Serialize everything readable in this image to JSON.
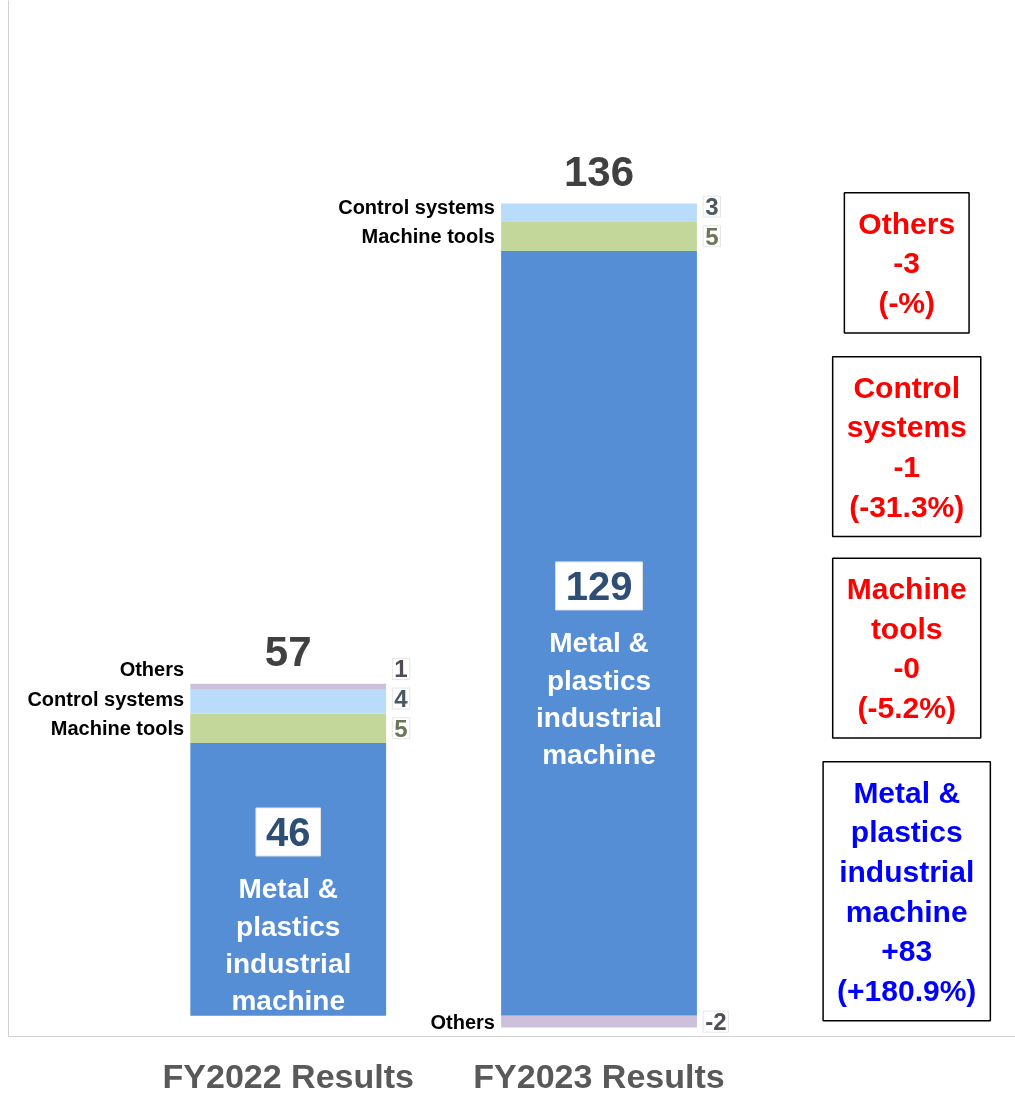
{
  "chart_data": {
    "type": "bar",
    "stacked": true,
    "categories": [
      "FY2022 Results",
      "FY2023 Results"
    ],
    "series": [
      {
        "name": "Metal & plastics industrial machine",
        "color": "#558ed5",
        "values": [
          46,
          129
        ]
      },
      {
        "name": "Machine tools",
        "color": "#c4d79b",
        "values": [
          5,
          5
        ]
      },
      {
        "name": "Control systems",
        "color": "#b9dcfb",
        "values": [
          4,
          3
        ]
      },
      {
        "name": "Others",
        "color": "#ccc0da",
        "values": [
          1,
          -2
        ]
      }
    ],
    "tick_labels": "x",
    "data_labels": true,
    "totals": [
      "57",
      "136"
    ],
    "grid": false,
    "legend": false,
    "annotations": [
      "Others\n-3\n(-%)",
      "Control\nsystems\n-1\n(-31.3%)",
      "Machine\ntools\n-0\n(-5.2%)",
      "Metal &\nplastics\nindustrial\nmachine\n+83\n(+180.9%)"
    ]
  }
}
